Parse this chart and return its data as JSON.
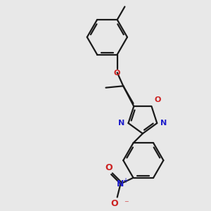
{
  "bg_color": "#e8e8e8",
  "bond_color": "#1a1a1a",
  "N_color": "#2020cc",
  "O_color": "#cc2020",
  "line_width": 1.6,
  "figsize": [
    3.0,
    3.0
  ],
  "dpi": 100,
  "xlim": [
    -1.5,
    2.5
  ],
  "ylim": [
    -3.5,
    2.5
  ]
}
